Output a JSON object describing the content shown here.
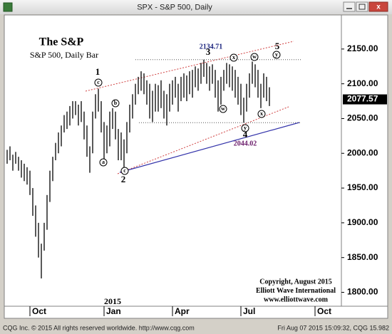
{
  "window": {
    "title": "SPX - S&P 500, Daily"
  },
  "status": {
    "left": "CQG Inc. © 2015 All rights reserved worldwide. http://www.cqg.com",
    "right": "Fri Aug 07 2015 15:09:32, CQG 15.982"
  },
  "chart_data": {
    "type": "range_bar",
    "title": "The S&P",
    "subtitle": "S&P 500, Daily Bar",
    "color": "#000000",
    "categories": [
      null,
      null,
      null,
      null,
      null,
      null,
      null,
      null,
      "Oct",
      null,
      null,
      null,
      null,
      null,
      null,
      null,
      null,
      null,
      null,
      null,
      null,
      null,
      null,
      null,
      null,
      null,
      null,
      null,
      null,
      null,
      null,
      null,
      null,
      null,
      "Jan",
      null,
      null,
      null,
      null,
      null,
      null,
      null,
      null,
      null,
      null,
      null,
      null,
      null,
      null,
      null,
      null,
      null,
      null,
      null,
      null,
      null,
      null,
      null,
      "Apr",
      null,
      null,
      null,
      null,
      null,
      null,
      null,
      null,
      null,
      null,
      null,
      null,
      null,
      null,
      null,
      null,
      null,
      null,
      null,
      null,
      null,
      null,
      null,
      "Jul",
      null,
      null,
      null,
      null,
      null,
      null,
      null,
      null,
      null,
      null,
      null,
      null,
      null,
      null,
      null,
      null,
      null,
      null,
      null,
      null,
      null,
      null,
      null,
      null,
      null,
      "Oct",
      null,
      null,
      null,
      null,
      null,
      null,
      null,
      null,
      null
    ],
    "high": [
      2005,
      2010,
      1998,
      2002,
      1995,
      1990,
      1985,
      1980,
      1975,
      1950,
      1925,
      1900,
      1870,
      1900,
      1940,
      1975,
      1995,
      2015,
      2030,
      2040,
      2055,
      2060,
      2068,
      2075,
      2075,
      2070,
      2075,
      2060,
      2040,
      2010,
      2060,
      2085,
      2093,
      2075,
      2045,
      2040,
      2060,
      2065,
      2060,
      2035,
      2030,
      2020,
      2045,
      2070,
      2085,
      2100,
      2110,
      2118,
      2115,
      2105,
      2100,
      2090,
      2100,
      2098,
      2105,
      2090,
      2085,
      2100,
      2105,
      2110,
      2100,
      2110,
      2115,
      2112,
      2118,
      2120,
      2125,
      2122,
      2130,
      2134.71,
      2130,
      2125,
      2128,
      2120,
      2105,
      2110,
      2120,
      2130,
      2128,
      2125,
      2120,
      2110,
      2100,
      2080,
      2100,
      2115,
      2132,
      2128,
      2120,
      2100,
      2115,
      2110,
      2095,
      null,
      null,
      null,
      null,
      null,
      null,
      null,
      null,
      null,
      null,
      null,
      null,
      null,
      null,
      null,
      null,
      null,
      null,
      null,
      null,
      null,
      null,
      null,
      null,
      null
    ],
    "low": [
      1985,
      1990,
      1975,
      1985,
      1975,
      1965,
      1960,
      1955,
      1940,
      1910,
      1880,
      1850,
      1820,
      1860,
      1890,
      1930,
      1960,
      1990,
      2000,
      2010,
      2030,
      2035,
      2040,
      2050,
      2055,
      2040,
      2045,
      2020,
      1995,
      1972,
      2000,
      2050,
      2060,
      2030,
      1990,
      2000,
      2010,
      2035,
      2020,
      1990,
      1990,
      1980,
      2000,
      2030,
      2050,
      2070,
      2085,
      2090,
      2085,
      2070,
      2050,
      2045,
      2060,
      2060,
      2065,
      2050,
      2040,
      2060,
      2070,
      2080,
      2060,
      2075,
      2080,
      2075,
      2085,
      2080,
      2095,
      2090,
      2100,
      2110,
      2100,
      2090,
      2100,
      2080,
      2060,
      2070,
      2090,
      2100,
      2095,
      2090,
      2080,
      2070,
      2055,
      2044.02,
      2060,
      2080,
      2100,
      2095,
      2080,
      2065,
      2080,
      2075,
      2068,
      null,
      null,
      null,
      null,
      null,
      null,
      null,
      null,
      null,
      null,
      null,
      null,
      null,
      null,
      null,
      null,
      null,
      null,
      null,
      null,
      null,
      null,
      null,
      null,
      null
    ],
    "last_price": 2077.57,
    "ylim": [
      1780,
      2198
    ],
    "yticks": [
      {
        "value": 1800,
        "label": "1800.00"
      },
      {
        "value": 1850,
        "label": "1850.00"
      },
      {
        "value": 1900,
        "label": "1900.00"
      },
      {
        "value": 1950,
        "label": "1950.00"
      },
      {
        "value": 2000,
        "label": "2000.00"
      },
      {
        "value": 2050,
        "label": "2050.00"
      },
      {
        "value": 2100,
        "label": "2100.00"
      },
      {
        "value": 2150,
        "label": "2150.00"
      }
    ],
    "year_label": "2015",
    "peak_label": {
      "value": 2134.71,
      "label": "2134.71"
    },
    "trough_label": {
      "value": 2044.02,
      "label": "2044.02"
    },
    "wave_labels": [
      "1",
      "2",
      "3",
      "4",
      "5"
    ],
    "sub_wave_labels": [
      "c",
      "a",
      "b",
      "c",
      "w",
      "x",
      "w",
      "x",
      "y",
      "y"
    ],
    "copyright": [
      "Copyright, August 2015",
      "Elliott Wave International",
      "www.elliottwave.com"
    ]
  }
}
